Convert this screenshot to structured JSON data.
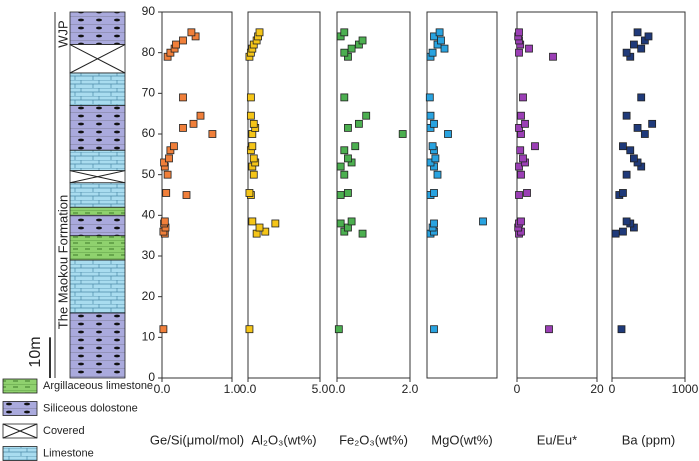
{
  "chart_data": {
    "type": "strat-multipanel",
    "formation_label": "The Maokou Formation",
    "member_label": "WJP",
    "scale_label": "10m",
    "ylim": [
      0,
      90
    ],
    "yticks": [
      0,
      10,
      20,
      30,
      40,
      50,
      60,
      70,
      80,
      90
    ],
    "y": [
      12,
      35.5,
      36,
      37,
      38,
      38.5,
      45,
      45.5,
      50,
      52,
      53,
      54,
      56,
      57,
      60,
      61.5,
      62.5,
      64.5,
      69,
      79,
      80,
      81,
      82,
      83,
      84,
      85
    ],
    "panels": [
      {
        "name": "Ge/Si(μmol/mol)",
        "color": "#f07f3a",
        "xlim": [
          0,
          1
        ],
        "xticks": [
          {
            "value": 0,
            "label": "0.0"
          },
          {
            "value": 1,
            "label": "1.0"
          }
        ],
        "values": [
          0.02,
          0.04,
          0.02,
          0.05,
          0.03,
          0.04,
          0.35,
          0.06,
          0.08,
          0.04,
          0.03,
          0.1,
          0.12,
          0.17,
          0.72,
          0.3,
          0.45,
          0.55,
          0.3,
          0.08,
          0.12,
          0.18,
          0.2,
          0.3,
          0.48,
          0.42
        ]
      },
      {
        "name": "Al₂O₃(wt%)",
        "color": "#f5c518",
        "xlim": [
          0,
          5
        ],
        "xticks": [
          {
            "value": 0,
            "label": "0.0"
          },
          {
            "value": 5,
            "label": "5.0"
          }
        ],
        "values": [
          0.1,
          0.6,
          1.2,
          0.8,
          1.9,
          0.3,
          0.2,
          0.1,
          0.4,
          0.3,
          0.5,
          0.4,
          0.2,
          0.3,
          0.3,
          0.5,
          0.4,
          0.2,
          0.2,
          0.1,
          0.2,
          0.3,
          0.4,
          0.6,
          0.7,
          0.8
        ]
      },
      {
        "name": "Fe₂O₃(wt%)",
        "color": "#4caf50",
        "xlim": [
          0,
          2
        ],
        "xticks": [
          {
            "value": 0,
            "label": "0.0"
          },
          {
            "value": 2,
            "label": "2.0"
          }
        ],
        "values": [
          0.05,
          0.7,
          0.2,
          0.3,
          0.1,
          0.4,
          0.1,
          0.3,
          0.2,
          0.1,
          0.4,
          0.3,
          0.2,
          0.5,
          1.8,
          0.3,
          0.6,
          0.8,
          0.2,
          0.3,
          0.2,
          0.4,
          0.6,
          0.7,
          0.1,
          0.2
        ]
      },
      {
        "name": "MgO(wt%)",
        "color": "#29a3e0",
        "xlim": [
          0,
          1
        ],
        "xticks": [],
        "values": [
          0.1,
          0.05,
          0.1,
          0.08,
          0.1,
          0.8,
          0.05,
          0.1,
          0.15,
          0.1,
          0.05,
          0.12,
          0.1,
          0.08,
          0.3,
          0.05,
          0.1,
          0.05,
          0.04,
          0.05,
          0.08,
          0.25,
          0.15,
          0.2,
          0.1,
          0.18
        ]
      },
      {
        "name": "Eu/Eu*",
        "color": "#9b3fb5",
        "xlim": [
          0,
          20
        ],
        "xticks": [
          0,
          20
        ],
        "values": [
          8,
          0.5,
          1,
          0.3,
          0.5,
          1,
          0.5,
          2.5,
          1,
          0.5,
          2,
          1.5,
          0.8,
          4.5,
          1,
          0.5,
          2,
          1,
          1.5,
          9,
          0.5,
          3,
          0.8,
          0.5,
          0.3,
          0.5
        ]
      },
      {
        "name": "Ba (ppm)",
        "color": "#1f3a7a",
        "xlim": [
          0,
          1000
        ],
        "xticks": [
          0,
          1000
        ],
        "values": [
          130,
          50,
          150,
          300,
          250,
          200,
          100,
          150,
          200,
          400,
          350,
          300,
          250,
          150,
          450,
          350,
          550,
          200,
          400,
          250,
          200,
          400,
          300,
          450,
          500,
          350
        ]
      }
    ],
    "legend": [
      {
        "name": "Argillaceous limestone",
        "intervals": [
          [
            29,
            35
          ],
          [
            40,
            42
          ]
        ]
      },
      {
        "name": "Siliceous dolostone",
        "intervals": [
          [
            0,
            16
          ],
          [
            35,
            40
          ],
          [
            56,
            67
          ],
          [
            82,
            90
          ]
        ]
      },
      {
        "name": "Covered",
        "intervals": [
          [
            48,
            51
          ],
          [
            75,
            82
          ]
        ]
      },
      {
        "name": "Limestone",
        "intervals": [
          [
            16,
            29
          ],
          [
            42,
            48
          ],
          [
            51,
            56
          ],
          [
            67,
            75
          ]
        ]
      }
    ]
  }
}
